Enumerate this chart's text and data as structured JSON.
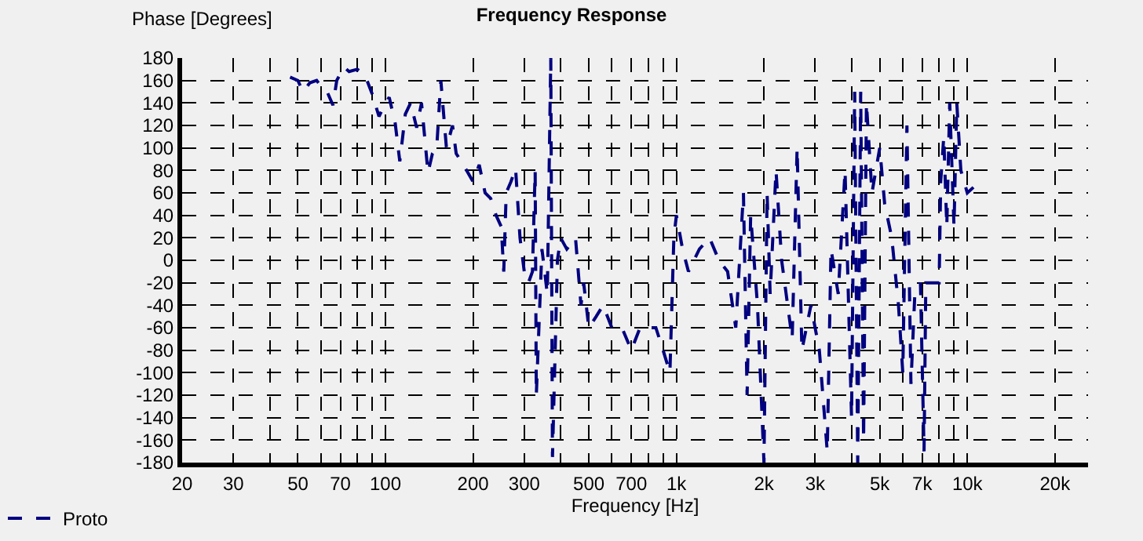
{
  "chart_data": {
    "type": "line",
    "title": "Frequency Response",
    "xlabel": "Frequency [Hz]",
    "ylabel": "Phase [Degrees]",
    "log": "x",
    "grid": true,
    "legend": "bottom left",
    "line_style": "dashed",
    "marker": "none",
    "xlim": [
      20,
      26000
    ],
    "xticks": [
      20,
      30,
      {
        "value": 40,
        "label": null
      },
      50,
      {
        "value": 60,
        "label": null
      },
      70,
      {
        "value": 80,
        "label": null
      },
      {
        "value": 90,
        "label": null
      },
      100,
      200,
      300,
      {
        "value": 400,
        "label": null
      },
      500,
      {
        "value": 600,
        "label": null
      },
      700,
      {
        "value": 800,
        "label": null
      },
      {
        "value": 900,
        "label": null
      },
      {
        "value": 1000,
        "label": "1k"
      },
      {
        "value": 2000,
        "label": "2k"
      },
      {
        "value": 3000,
        "label": "3k"
      },
      {
        "value": 4000,
        "label": null
      },
      {
        "value": 5000,
        "label": "5k"
      },
      {
        "value": 6000,
        "label": null
      },
      {
        "value": 7000,
        "label": "7k"
      },
      {
        "value": 8000,
        "label": null
      },
      {
        "value": 9000,
        "label": null
      },
      {
        "value": 10000,
        "label": "10k"
      },
      {
        "value": 20000,
        "label": "20k"
      }
    ],
    "ylim": [
      -180,
      180
    ],
    "yticks": [
      -180,
      -160,
      -140,
      -120,
      -100,
      -80,
      -60,
      -40,
      -20,
      0,
      20,
      40,
      60,
      80,
      100,
      120,
      140,
      160,
      180
    ],
    "x": [
      47,
      50,
      52,
      55,
      58,
      60,
      63,
      66,
      68,
      72,
      75,
      80,
      85,
      90,
      95,
      100,
      103,
      108,
      112,
      117,
      122,
      128,
      133,
      140,
      145,
      150,
      155,
      162,
      170,
      175,
      180,
      190,
      200,
      210,
      220,
      230,
      240,
      250,
      255,
      260,
      270,
      280,
      290,
      300,
      310,
      320,
      327,
      330,
      345,
      360,
      370,
      375,
      390,
      400,
      420,
      450,
      470,
      480,
      500,
      530,
      560,
      600,
      650,
      700,
      750,
      800,
      850,
      900,
      950,
      980,
      1000,
      1050,
      1100,
      1200,
      1300,
      1400,
      1500,
      1600,
      1700,
      1750,
      1800,
      1900,
      2000,
      2050,
      2100,
      2200,
      2300,
      2500,
      2600,
      2700,
      2900,
      3100,
      3300,
      3400,
      3600,
      3800,
      4000,
      4100,
      4200,
      4300,
      4400,
      4500,
      4700,
      5000,
      5200,
      5500,
      5800,
      6000,
      6200,
      6400,
      6600,
      6900,
      7100,
      7200,
      8000,
      8100,
      8300,
      8500,
      8700,
      9000,
      9200,
      9500,
      10000,
      10500
    ],
    "series": [
      {
        "name": "Proto",
        "color": "#000080",
        "values": [
          163,
          160,
          150,
          158,
          160,
          155,
          150,
          138,
          160,
          172,
          168,
          170,
          165,
          148,
          128,
          140,
          145,
          122,
          88,
          130,
          140,
          118,
          140,
          78,
          95,
          100,
          160,
          100,
          120,
          95,
          90,
          80,
          70,
          85,
          60,
          55,
          40,
          30,
          -10,
          60,
          70,
          82,
          20,
          -10,
          -20,
          -10,
          80,
          -120,
          10,
          -30,
          180,
          -175,
          0,
          20,
          10,
          20,
          -40,
          -20,
          -60,
          -50,
          -40,
          -60,
          -60,
          -80,
          -60,
          -60,
          -60,
          -80,
          -100,
          20,
          40,
          10,
          -10,
          10,
          20,
          0,
          -10,
          -60,
          60,
          -120,
          40,
          -40,
          -180,
          60,
          -30,
          80,
          0,
          -70,
          100,
          -80,
          -40,
          -80,
          -170,
          10,
          -30,
          80,
          -140,
          150,
          -180,
          150,
          -160,
          140,
          60,
          100,
          50,
          20,
          -40,
          -100,
          120,
          -110,
          -30,
          -20,
          -170,
          -20,
          -20,
          70,
          110,
          30,
          140,
          30,
          140,
          80,
          60,
          65
        ]
      }
    ]
  }
}
